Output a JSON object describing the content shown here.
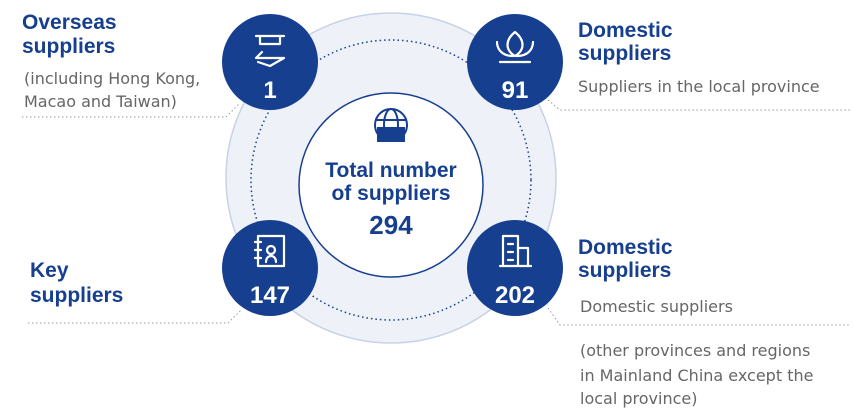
{
  "center": {
    "title_lines": [
      "Total number",
      "of suppliers"
    ],
    "value": 294
  },
  "segments": [
    {
      "title_lines": [
        "Overseas",
        "suppliers"
      ],
      "value": 1,
      "description_lines": [
        "(including Hong Kong,",
        "Macao and Taiwan)"
      ]
    },
    {
      "title_lines": [
        "Domestic",
        "suppliers"
      ],
      "value": 91,
      "description_lines": [
        "Suppliers in the local province"
      ]
    },
    {
      "title_lines": [
        "Key",
        "suppliers"
      ],
      "value": 147,
      "description_lines": []
    },
    {
      "title_lines": [
        "Domestic",
        "suppliers"
      ],
      "value": 202,
      "description_lines": [
        "Domestic suppliers",
        "(other provinces and regions",
        "in Mainland China except the",
        "local province)"
      ]
    }
  ]
}
